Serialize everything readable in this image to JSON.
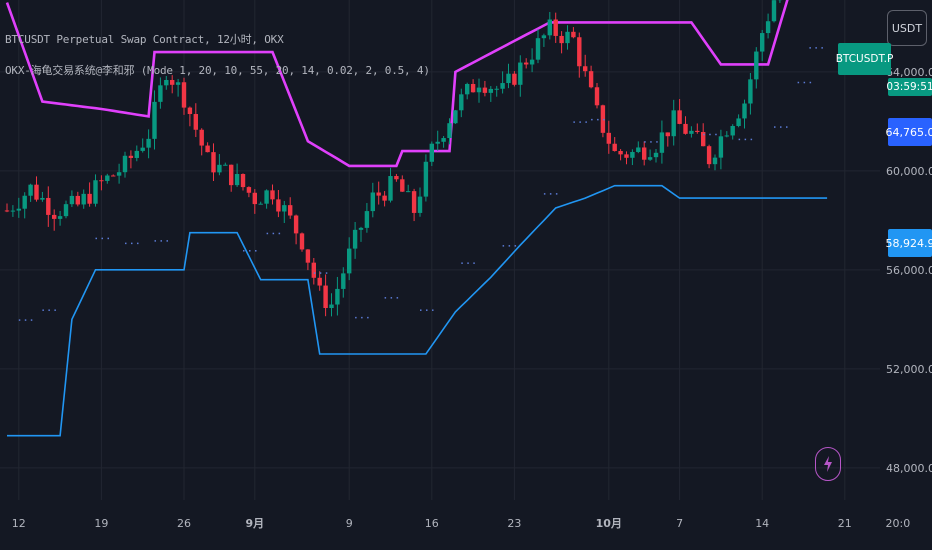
{
  "legend": {
    "title": "BTCUSDT Perpetual Swap Contract, 12小时, OKX",
    "indicator": "OKX-海龟交易系统@李和邪 (Mode 1, 20, 10, 55, 20, 14, 0.02, 2, 0.5, 4)"
  },
  "toolbar": {
    "currency_label": "USDT"
  },
  "price_tags": {
    "symbol": "BTCUSDT.P",
    "timer": "03:59:51",
    "upper": "64,765.0",
    "lower": "58,924.9"
  },
  "colors": {
    "background": "#141823",
    "up": "#089981",
    "down": "#f23645",
    "upper_channel": "#e040fb",
    "lower_channel": "#2196f3",
    "grid": "#222631",
    "axis_text": "#b2b5be"
  },
  "icons": {
    "alert": "lightning-bolt-icon"
  },
  "chart_data": {
    "type": "candlestick",
    "title": "",
    "ylim": [
      46700,
      66500
    ],
    "y_ticks": [
      {
        "label": "48,000.0",
        "value": 48000
      },
      {
        "label": "52,000.0",
        "value": 52000
      },
      {
        "label": "56,000.0",
        "value": 56000
      },
      {
        "label": "60,000.0",
        "value": 60000
      },
      {
        "label": "64,000.0",
        "value": 64000
      }
    ],
    "x_ticks": [
      {
        "label": "12",
        "index": 2,
        "bold": false
      },
      {
        "label": "19",
        "index": 16,
        "bold": false
      },
      {
        "label": "26",
        "index": 30,
        "bold": false
      },
      {
        "label": "9月",
        "index": 42,
        "bold": true
      },
      {
        "label": "9",
        "index": 58,
        "bold": false
      },
      {
        "label": "16",
        "index": 72,
        "bold": false
      },
      {
        "label": "23",
        "index": 86,
        "bold": false
      },
      {
        "label": "10月",
        "index": 102,
        "bold": true
      },
      {
        "label": "7",
        "index": 114,
        "bold": false
      },
      {
        "label": "14",
        "index": 128,
        "bold": false
      },
      {
        "label": "21",
        "index": 142,
        "bold": false
      },
      {
        "label": "20:0",
        "index": 151,
        "bold": false
      }
    ],
    "candle_count": 138,
    "close_anchors": [
      [
        0,
        58400
      ],
      [
        4,
        59300
      ],
      [
        8,
        58400
      ],
      [
        12,
        58600
      ],
      [
        16,
        59500
      ],
      [
        20,
        60200
      ],
      [
        24,
        61500
      ],
      [
        27,
        64100
      ],
      [
        30,
        63000
      ],
      [
        34,
        60400
      ],
      [
        38,
        59800
      ],
      [
        42,
        58900
      ],
      [
        45,
        59200
      ],
      [
        50,
        57200
      ],
      [
        53,
        55000
      ],
      [
        55,
        54600
      ],
      [
        58,
        56600
      ],
      [
        62,
        58900
      ],
      [
        66,
        59500
      ],
      [
        69,
        58400
      ],
      [
        72,
        60800
      ],
      [
        76,
        62600
      ],
      [
        80,
        63700
      ],
      [
        84,
        63200
      ],
      [
        88,
        64500
      ],
      [
        92,
        65700
      ],
      [
        96,
        65300
      ],
      [
        100,
        62300
      ],
      [
        103,
        60700
      ],
      [
        106,
        60700
      ],
      [
        110,
        61100
      ],
      [
        113,
        62000
      ],
      [
        116,
        61500
      ],
      [
        119,
        60500
      ],
      [
        122,
        61800
      ],
      [
        125,
        62800
      ],
      [
        128,
        65600
      ],
      [
        131,
        67600
      ],
      [
        134,
        68000
      ],
      [
        137,
        68500
      ]
    ],
    "upper_channel": [
      [
        0,
        66800
      ],
      [
        6,
        62800
      ],
      [
        16,
        62500
      ],
      [
        24,
        62200
      ],
      [
        25,
        64800
      ],
      [
        45,
        64800
      ],
      [
        51,
        61200
      ],
      [
        58,
        60200
      ],
      [
        66,
        60200
      ],
      [
        67,
        60800
      ],
      [
        75,
        60800
      ],
      [
        76,
        64000
      ],
      [
        92,
        66000
      ],
      [
        116,
        66000
      ],
      [
        121,
        64300
      ],
      [
        129,
        64300
      ],
      [
        133,
        67500
      ],
      [
        137,
        67800
      ],
      [
        139,
        68600
      ]
    ],
    "lower_channel": [
      [
        0,
        49300
      ],
      [
        9,
        49300
      ],
      [
        11,
        54000
      ],
      [
        15,
        56000
      ],
      [
        30,
        56000
      ],
      [
        31,
        57500
      ],
      [
        39,
        57500
      ],
      [
        43,
        55600
      ],
      [
        51,
        55600
      ],
      [
        53,
        52600
      ],
      [
        71,
        52600
      ],
      [
        76,
        54300
      ],
      [
        82,
        55700
      ],
      [
        87,
        57000
      ],
      [
        93,
        58500
      ],
      [
        98,
        58900
      ],
      [
        103,
        59400
      ],
      [
        111,
        59400
      ],
      [
        114,
        58900
      ],
      [
        139,
        58900
      ]
    ],
    "stop_dots": [
      [
        2,
        54000
      ],
      [
        6,
        54400
      ],
      [
        15,
        57300
      ],
      [
        20,
        57100
      ],
      [
        25,
        57200
      ],
      [
        40,
        56800
      ],
      [
        44,
        57500
      ],
      [
        52,
        55900
      ],
      [
        59,
        54100
      ],
      [
        64,
        54900
      ],
      [
        70,
        54400
      ],
      [
        77,
        56300
      ],
      [
        84,
        57000
      ],
      [
        91,
        59100
      ],
      [
        96,
        62000
      ],
      [
        99,
        62100
      ],
      [
        108,
        61200
      ],
      [
        118,
        61500
      ],
      [
        124,
        61300
      ],
      [
        130,
        61800
      ],
      [
        134,
        63600
      ],
      [
        136,
        65000
      ]
    ]
  }
}
